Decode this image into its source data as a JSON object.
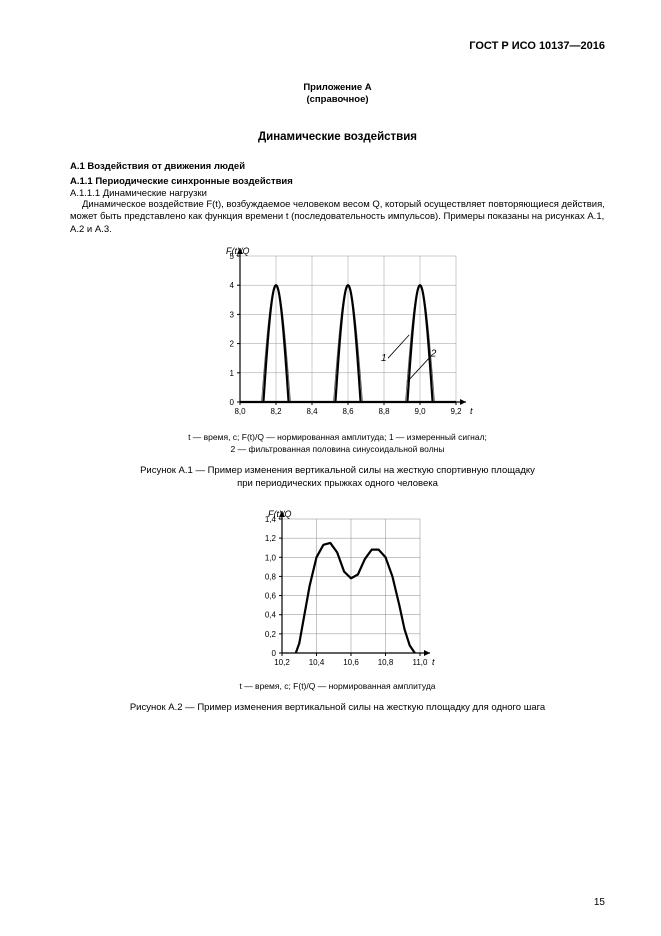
{
  "doc_header": "ГОСТ Р ИСО 10137—2016",
  "annex_title": "Приложение А",
  "annex_sub": "(справочное)",
  "main_title": "Динамические воздействия",
  "h_a1": "А.1  Воздействия от движения людей",
  "h_a11": "А.1.1  Периодические синхронные воздействия",
  "h_a111": "А.1.1.1  Динамические нагрузки",
  "para1": "Динамическое воздействие F(t), возбуждаемое человеком весом Q, который осуществляет повторяющиеся действия, может быть представлено как функция времени t (последовательность импульсов). Примеры показаны на рисунках А.1, А.2 и А.3.",
  "fig1": {
    "ylabel": "F(t)/Q",
    "xlabel": "t",
    "ylim": [
      0,
      5
    ],
    "xlim": [
      8.0,
      9.2
    ],
    "xticks": [
      "8,0",
      "8,2",
      "8,4",
      "8,6",
      "8,8",
      "9,0",
      "9,2"
    ],
    "yticks": [
      "0",
      "1",
      "2",
      "3",
      "4",
      "5"
    ],
    "peaks_x": [
      8.2,
      8.6,
      9.0
    ],
    "peak_height": 4.0,
    "half_width": 0.07,
    "annot1": "1",
    "annot2": "2",
    "note_line1": "t — время, с; F(t)/Q — нормированная амплитуда; 1 — измеренный сигнал;",
    "note_line2": "2 — фильтрованная половина синусоидальной волны",
    "caption_line1": "Рисунок А.1 — Пример изменения вертикальной силы на жесткую спортивную площадку",
    "caption_line2": "при периодических прыжках одного человека",
    "axis_color": "#000000",
    "grid_color": "#999999",
    "line_width_main": 2.2,
    "line_width_thin": 0.8
  },
  "fig2": {
    "ylabel": "F(t)/Q",
    "xlabel": "t",
    "ylim": [
      0,
      1.4
    ],
    "xlim": [
      10.2,
      11.0
    ],
    "xticks": [
      "10,2",
      "10,4",
      "10,6",
      "10,8",
      "11,0"
    ],
    "yticks": [
      "0",
      "0,2",
      "0,4",
      "0,6",
      "0,8",
      "1,0",
      "1,2",
      "1,4"
    ],
    "data": [
      [
        10.28,
        0.0
      ],
      [
        10.3,
        0.1
      ],
      [
        10.33,
        0.4
      ],
      [
        10.36,
        0.7
      ],
      [
        10.4,
        1.0
      ],
      [
        10.44,
        1.13
      ],
      [
        10.48,
        1.15
      ],
      [
        10.52,
        1.05
      ],
      [
        10.56,
        0.85
      ],
      [
        10.6,
        0.78
      ],
      [
        10.64,
        0.82
      ],
      [
        10.68,
        0.98
      ],
      [
        10.72,
        1.08
      ],
      [
        10.76,
        1.08
      ],
      [
        10.8,
        1.0
      ],
      [
        10.84,
        0.8
      ],
      [
        10.88,
        0.5
      ],
      [
        10.91,
        0.25
      ],
      [
        10.94,
        0.08
      ],
      [
        10.97,
        0.0
      ]
    ],
    "note": "t — время, с; F(t)/Q — нормированная амплитуда",
    "caption": "Рисунок А.2 — Пример изменения вертикальной силы на жесткую площадку для одного шага",
    "axis_color": "#000000",
    "grid_color": "#888888",
    "line_width_main": 2.2
  },
  "page_number": "15"
}
